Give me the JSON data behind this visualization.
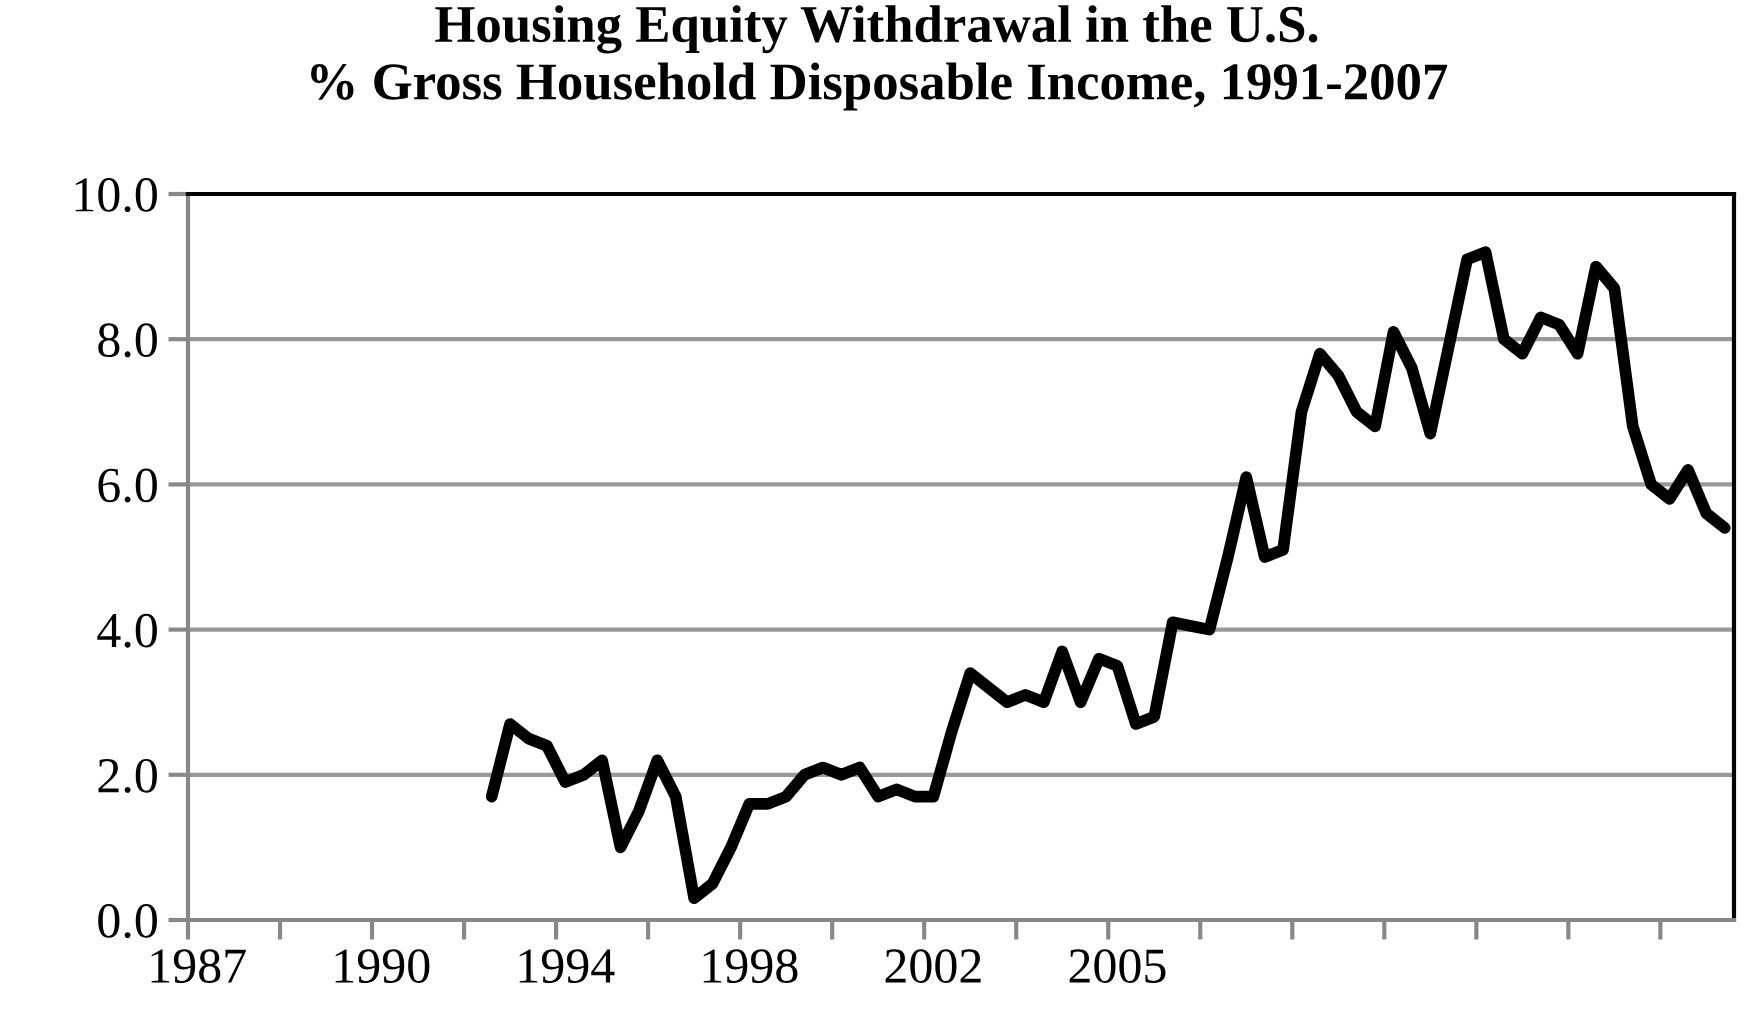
{
  "chart_data": {
    "type": "line",
    "title": "Housing Equity Withdrawal in the U.S.\n% Gross Household Disposable Income, 1991-2007",
    "categories": [
      "1987",
      null,
      null,
      null,
      null,
      null,
      null,
      null,
      null,
      null,
      "1990",
      null,
      null,
      null,
      null,
      null,
      null,
      null,
      null,
      null,
      "1994",
      null,
      null,
      null,
      null,
      null,
      null,
      null,
      null,
      null,
      "1998",
      null,
      null,
      null,
      null,
      null,
      null,
      null,
      null,
      null,
      "2002",
      null,
      null,
      null,
      null,
      null,
      null,
      null,
      null,
      null,
      "2005",
      null,
      null,
      null,
      null,
      null,
      null,
      null,
      null,
      null,
      null,
      null,
      null,
      null,
      null,
      null,
      null,
      null,
      null,
      null,
      null,
      null,
      null,
      null,
      null,
      null,
      null,
      null,
      null,
      null,
      null,
      null,
      null,
      null
    ],
    "series": [
      {
        "color": "#000000",
        "values": [
          null,
          null,
          null,
          null,
          null,
          null,
          null,
          null,
          null,
          null,
          null,
          null,
          null,
          null,
          null,
          null,
          1.7,
          2.7,
          2.5,
          2.4,
          1.9,
          2.0,
          2.2,
          1.0,
          1.5,
          2.2,
          1.7,
          0.3,
          0.5,
          1.0,
          1.6,
          1.6,
          1.7,
          2.0,
          2.1,
          2.0,
          2.1,
          1.7,
          1.8,
          1.7,
          1.7,
          2.6,
          3.4,
          3.2,
          3.0,
          3.1,
          3.0,
          3.7,
          3.0,
          3.6,
          3.5,
          2.7,
          2.8,
          4.1,
          4.05,
          4.0,
          5.0,
          6.1,
          5.0,
          5.1,
          7.0,
          7.8,
          7.5,
          7.0,
          6.8,
          8.1,
          7.6,
          6.7,
          7.9,
          9.1,
          9.2,
          8.0,
          7.8,
          8.3,
          8.2,
          7.8,
          9.0,
          8.7,
          6.8,
          6.0,
          5.8,
          6.2,
          5.6,
          5.4
        ]
      }
    ],
    "ylim": [
      0,
      10
    ],
    "yticks": [
      {
        "value": 0,
        "label": "0.0"
      },
      {
        "value": 2,
        "label": "2.0"
      },
      {
        "value": 4,
        "label": "4.0"
      },
      {
        "value": 6,
        "label": "6.0"
      },
      {
        "value": 8,
        "label": "8.0"
      },
      {
        "value": 10,
        "label": "10.0"
      }
    ],
    "grid": "y",
    "marker": "none",
    "line_style": "solid"
  }
}
